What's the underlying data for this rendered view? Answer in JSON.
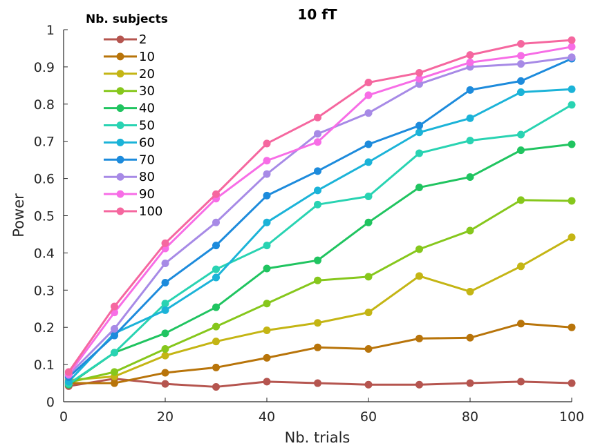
{
  "chart_data": {
    "type": "line",
    "title": "10 fT",
    "xlabel": "Nb. trials",
    "ylabel": "Power",
    "xlim": [
      0,
      100
    ],
    "ylim": [
      0,
      1
    ],
    "xticks": [
      "0",
      "20",
      "40",
      "60",
      "80",
      "100"
    ],
    "yticks": [
      "0",
      "0.1",
      "0.2",
      "0.3",
      "0.4",
      "0.5",
      "0.6",
      "0.7",
      "0.8",
      "0.9",
      "1"
    ],
    "grid": false,
    "legend_title": "Nb. subjects",
    "legend_position": "top-left",
    "x": [
      1,
      10,
      20,
      30,
      40,
      50,
      60,
      70,
      80,
      90,
      100
    ],
    "series": [
      {
        "name": "2",
        "color": "#b5554f",
        "values": [
          0.042,
          0.062,
          0.048,
          0.04,
          0.054,
          0.05,
          0.046,
          0.046,
          0.05,
          0.054,
          0.05
        ]
      },
      {
        "name": "10",
        "color": "#b8740a",
        "values": [
          0.05,
          0.05,
          0.078,
          0.092,
          0.118,
          0.146,
          0.142,
          0.17,
          0.172,
          0.21,
          0.2
        ]
      },
      {
        "name": "20",
        "color": "#c4b514",
        "values": [
          0.058,
          0.068,
          0.124,
          0.162,
          0.192,
          0.212,
          0.24,
          0.338,
          0.296,
          0.364,
          0.442
        ]
      },
      {
        "name": "30",
        "color": "#86c71c",
        "values": [
          0.052,
          0.08,
          0.142,
          0.202,
          0.264,
          0.326,
          0.336,
          0.41,
          0.46,
          0.542,
          0.54
        ]
      },
      {
        "name": "40",
        "color": "#20c460",
        "values": [
          0.046,
          0.132,
          0.184,
          0.254,
          0.358,
          0.38,
          0.482,
          0.576,
          0.604,
          0.676,
          0.692
        ]
      },
      {
        "name": "50",
        "color": "#29d3b2",
        "values": [
          0.048,
          0.132,
          0.264,
          0.356,
          0.42,
          0.53,
          0.552,
          0.668,
          0.702,
          0.718,
          0.798
        ]
      },
      {
        "name": "60",
        "color": "#1bb3d8",
        "values": [
          0.054,
          0.184,
          0.246,
          0.334,
          0.482,
          0.568,
          0.644,
          0.724,
          0.762,
          0.832,
          0.84
        ]
      },
      {
        "name": "70",
        "color": "#1d8bdc",
        "values": [
          0.066,
          0.178,
          0.32,
          0.42,
          0.554,
          0.62,
          0.692,
          0.742,
          0.838,
          0.862,
          0.922
        ]
      },
      {
        "name": "80",
        "color": "#a78ae6",
        "values": [
          0.072,
          0.196,
          0.372,
          0.482,
          0.612,
          0.72,
          0.776,
          0.854,
          0.9,
          0.908,
          0.926
        ]
      },
      {
        "name": "90",
        "color": "#f76de6",
        "values": [
          0.074,
          0.24,
          0.412,
          0.546,
          0.648,
          0.698,
          0.824,
          0.868,
          0.912,
          0.93,
          0.954
        ]
      },
      {
        "name": "100",
        "color": "#f5679f",
        "values": [
          0.08,
          0.256,
          0.426,
          0.558,
          0.694,
          0.764,
          0.858,
          0.884,
          0.932,
          0.962,
          0.972
        ]
      }
    ]
  }
}
